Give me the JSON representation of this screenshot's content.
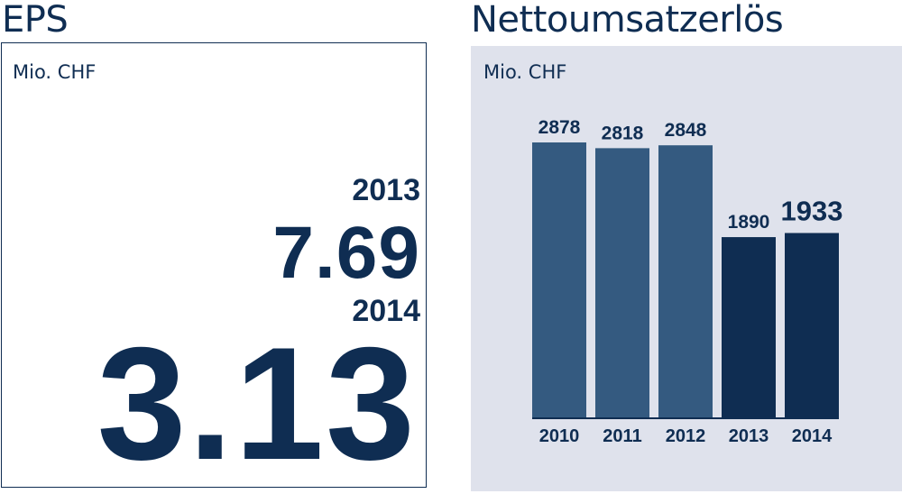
{
  "eps": {
    "title": "EPS",
    "unit": "Mio. CHF",
    "entries": [
      {
        "year": "2013",
        "value": "7.69"
      },
      {
        "year": "2014",
        "value": "3.13"
      }
    ]
  },
  "sales": {
    "title": "Nettoumsatzerlös",
    "unit": "Mio. CHF"
  },
  "colors": {
    "dark_navy": "#0f2d52",
    "steel_blue": "#345a80",
    "panel_bg": "#dfe2ec"
  },
  "chart_data": {
    "type": "bar",
    "title": "Nettoumsatzerlös",
    "ylabel": "Mio. CHF",
    "xlabel": "",
    "categories": [
      "2010",
      "2011",
      "2012",
      "2013",
      "2014"
    ],
    "values": [
      2878,
      2818,
      2848,
      1890,
      1933
    ],
    "ylim": [
      0,
      2878
    ],
    "grid": false,
    "highlight_last_two": true
  }
}
